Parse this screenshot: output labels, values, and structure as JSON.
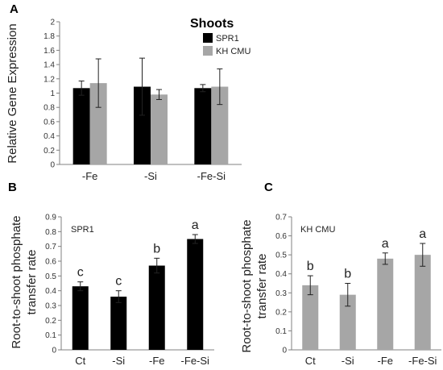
{
  "figure": {
    "panel_labels": [
      "A",
      "B",
      "C"
    ]
  },
  "chart_data": [
    {
      "panel": "A",
      "type": "bar",
      "title": "Shoots",
      "xlabel": "",
      "ylabel": "Relative Gene Expression",
      "ylim": [
        0,
        2
      ],
      "yticks": [
        "0",
        "0.2",
        "0.4",
        "0.6",
        "0.8",
        "1",
        "1.2",
        "1.4",
        "1.6",
        "1.8",
        "2"
      ],
      "categories": [
        "-Fe",
        "-Si",
        "-Fe-Si"
      ],
      "series": [
        {
          "name": "SPR1",
          "color": "#000000",
          "values": [
            1.07,
            1.09,
            1.07
          ],
          "errors": [
            0.1,
            0.4,
            0.05
          ]
        },
        {
          "name": "KH CMU",
          "color": "#a6a6a6",
          "values": [
            1.14,
            0.98,
            1.09
          ],
          "errors": [
            0.34,
            0.07,
            0.25
          ]
        }
      ],
      "legend_position": "top-right",
      "grid": false
    },
    {
      "panel": "B",
      "type": "bar",
      "title": "SPR1",
      "xlabel": "",
      "ylabel": "Root-to-shoot phosphate transfer rate",
      "ylim": [
        0,
        0.9
      ],
      "yticks": [
        "0",
        "0.1",
        "0.2",
        "0.3",
        "0.4",
        "0.5",
        "0.6",
        "0.7",
        "0.8",
        "0.9"
      ],
      "categories": [
        "Ct",
        "-Si",
        "-Fe",
        "-Fe-Si"
      ],
      "series": [
        {
          "color": "#000000",
          "values": [
            0.43,
            0.36,
            0.57,
            0.75
          ],
          "errors": [
            0.03,
            0.04,
            0.05,
            0.03
          ],
          "letters": [
            "c",
            "c",
            "b",
            "a"
          ]
        }
      ],
      "grid": false
    },
    {
      "panel": "C",
      "type": "bar",
      "title": "KH CMU",
      "xlabel": "",
      "ylabel": "Root-to-shoot phosphate transfer rate",
      "ylim": [
        0,
        0.7
      ],
      "yticks": [
        "0",
        "0.1",
        "0.2",
        "0.3",
        "0.4",
        "0.5",
        "0.6",
        "0.7"
      ],
      "categories": [
        "Ct",
        "-Si",
        "-Fe",
        "-Fe-Si"
      ],
      "series": [
        {
          "color": "#a6a6a6",
          "values": [
            0.34,
            0.29,
            0.48,
            0.5
          ],
          "errors": [
            0.05,
            0.06,
            0.03,
            0.06
          ],
          "letters": [
            "b",
            "b",
            "a",
            "a"
          ]
        }
      ],
      "grid": false
    }
  ]
}
